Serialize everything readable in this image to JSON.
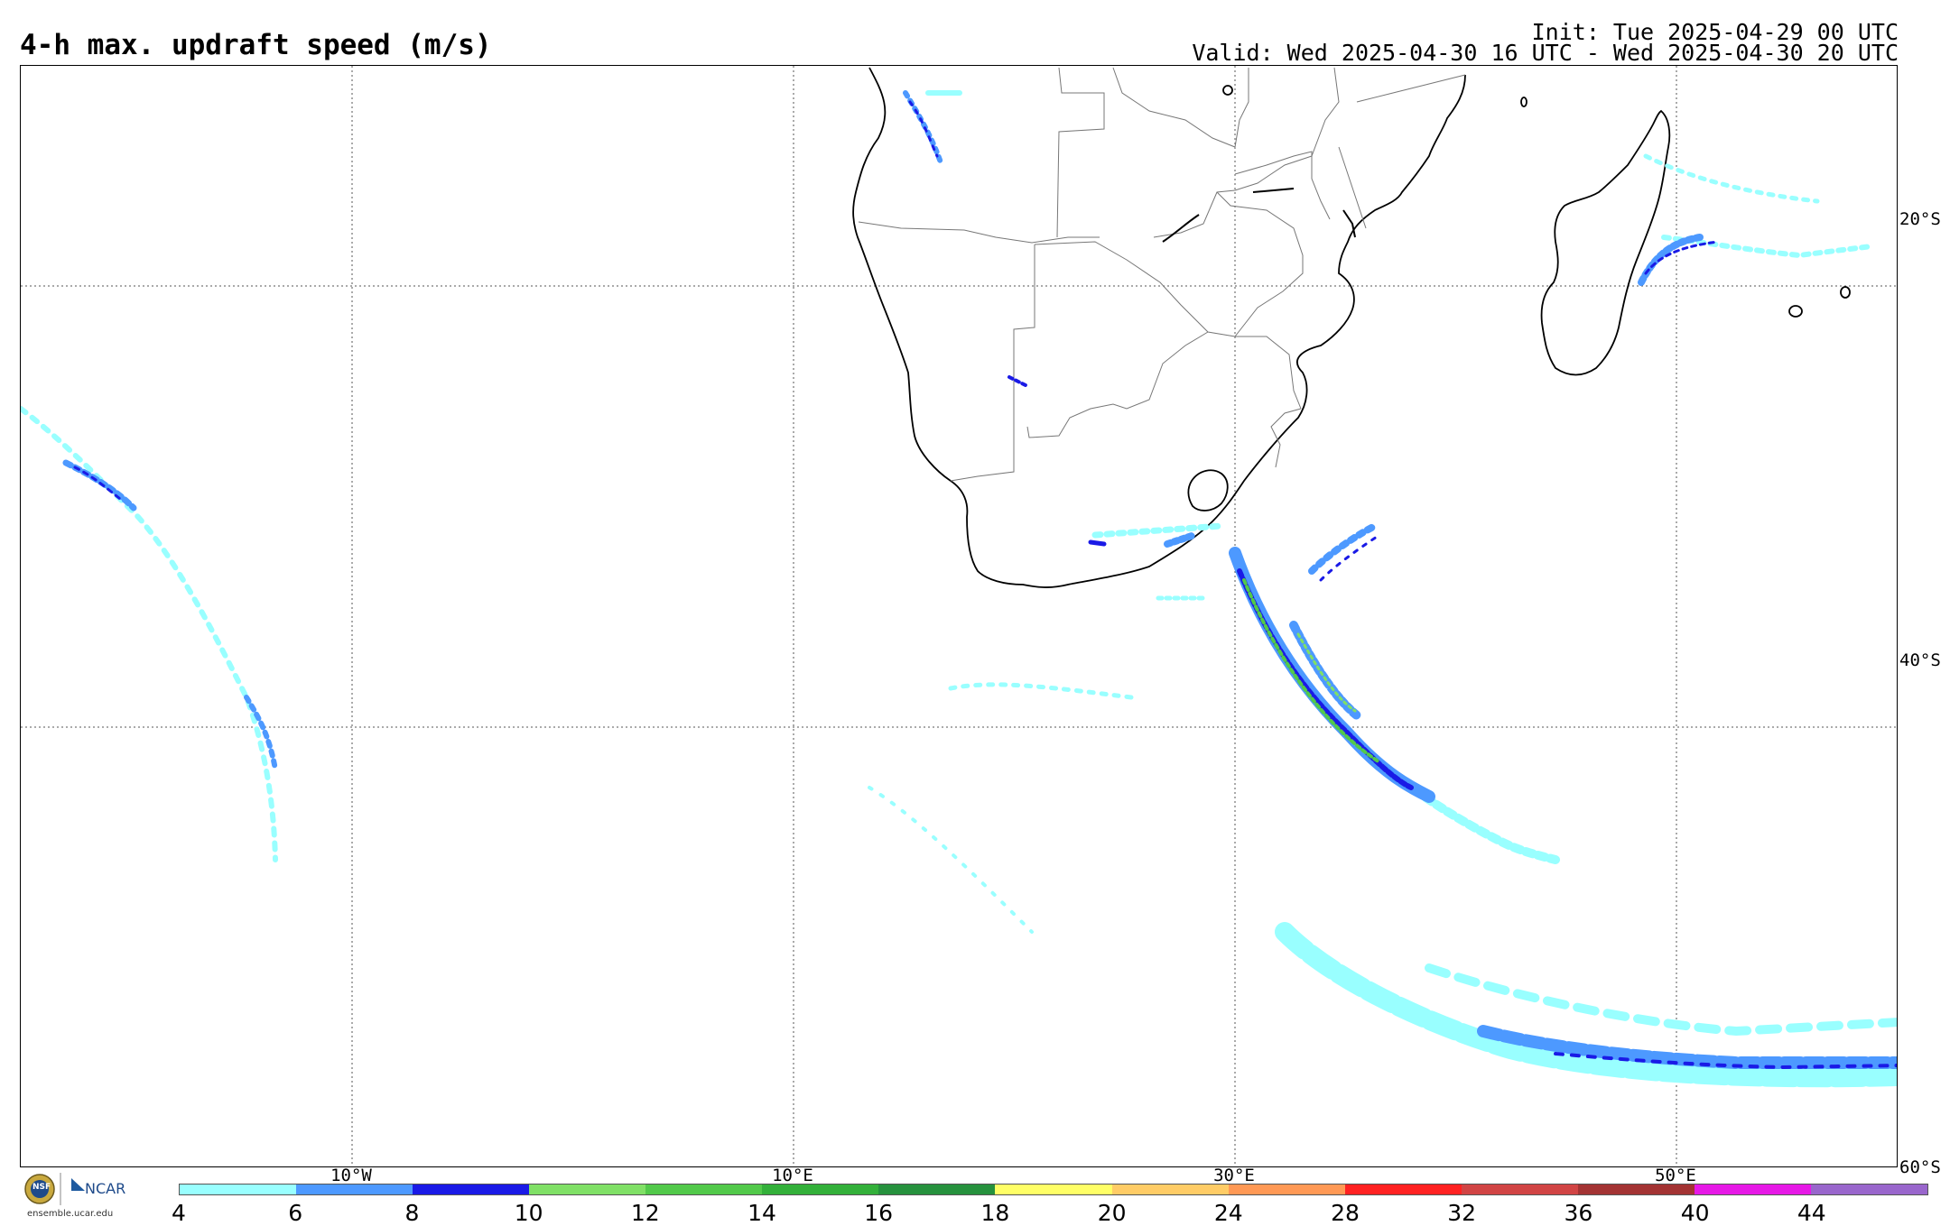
{
  "header": {
    "title": "4-h max. updraft speed (m/s)",
    "init": "Init: Tue 2025-04-29 00 UTC",
    "valid": "Valid: Wed 2025-04-30 16 UTC - Wed 2025-04-30 20 UTC"
  },
  "map": {
    "lat_labels": [
      "20°S",
      "40°S",
      "60°S"
    ],
    "lon_labels": [
      "10°W",
      "10°E",
      "30°E",
      "50°E"
    ]
  },
  "colorbar": {
    "colors": [
      "#99ffff",
      "#4d99ff",
      "#1a1ae6",
      "#80e066",
      "#52c94a",
      "#33b03a",
      "#26913d",
      "#ffff66",
      "#ffcc66",
      "#ff9955",
      "#ff2222",
      "#d14444",
      "#a33333",
      "#e619e6",
      "#9966cc"
    ],
    "labels": [
      "4",
      "6",
      "8",
      "10",
      "12",
      "14",
      "16",
      "18",
      "20",
      "24",
      "28",
      "32",
      "36",
      "40",
      "44"
    ]
  },
  "branding": {
    "org": "NCAR",
    "seal": "NSF",
    "url": "ensemble.ucar.edu"
  }
}
